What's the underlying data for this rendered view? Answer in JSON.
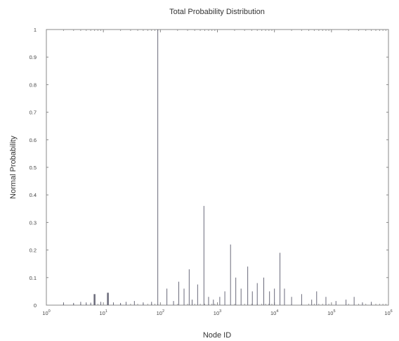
{
  "chart_data": {
    "type": "bar",
    "title": "Total Probability Distribution",
    "xlabel": "Node ID",
    "ylabel": "Normal Probability",
    "x_scale": "log",
    "xlim": [
      1,
      1000000
    ],
    "ylim": [
      0,
      1
    ],
    "grid": false,
    "x_ticks": [
      {
        "value": 1,
        "base": "10",
        "exp": "0"
      },
      {
        "value": 10,
        "base": "10",
        "exp": "1"
      },
      {
        "value": 100,
        "base": "10",
        "exp": "2"
      },
      {
        "value": 1000,
        "base": "10",
        "exp": "3"
      },
      {
        "value": 10000,
        "base": "10",
        "exp": "4"
      },
      {
        "value": 100000,
        "base": "10",
        "exp": "5"
      },
      {
        "value": 1000000,
        "base": "10",
        "exp": "6"
      }
    ],
    "y_ticks": [
      "0",
      "0.1",
      "0.2",
      "0.3",
      "0.4",
      "0.5",
      "0.6",
      "0.7",
      "0.8",
      "0.9",
      "1"
    ],
    "series": [
      {
        "color": "#6a6a7a",
        "points": [
          {
            "x": 2,
            "y": 0.01
          },
          {
            "x": 3,
            "y": 0.008
          },
          {
            "x": 4,
            "y": 0.012
          },
          {
            "x": 5,
            "y": 0.01
          },
          {
            "x": 6,
            "y": 0.009
          },
          {
            "x": 7,
            "y": 0.04
          },
          {
            "x": 9,
            "y": 0.012
          },
          {
            "x": 12,
            "y": 0.045
          },
          {
            "x": 15,
            "y": 0.01
          },
          {
            "x": 20,
            "y": 0.008
          },
          {
            "x": 25,
            "y": 0.012
          },
          {
            "x": 35,
            "y": 0.015
          },
          {
            "x": 50,
            "y": 0.01
          },
          {
            "x": 70,
            "y": 0.012
          },
          {
            "x": 90,
            "y": 1.0
          },
          {
            "x": 130,
            "y": 0.06
          },
          {
            "x": 170,
            "y": 0.015
          },
          {
            "x": 210,
            "y": 0.085
          },
          {
            "x": 260,
            "y": 0.06
          },
          {
            "x": 320,
            "y": 0.13
          },
          {
            "x": 360,
            "y": 0.02
          },
          {
            "x": 450,
            "y": 0.075
          },
          {
            "x": 580,
            "y": 0.36
          },
          {
            "x": 700,
            "y": 0.03
          },
          {
            "x": 850,
            "y": 0.02
          },
          {
            "x": 1100,
            "y": 0.03
          },
          {
            "x": 1350,
            "y": 0.05
          },
          {
            "x": 1700,
            "y": 0.22
          },
          {
            "x": 2100,
            "y": 0.1
          },
          {
            "x": 2600,
            "y": 0.06
          },
          {
            "x": 3400,
            "y": 0.14
          },
          {
            "x": 4100,
            "y": 0.05
          },
          {
            "x": 5000,
            "y": 0.08
          },
          {
            "x": 6500,
            "y": 0.1
          },
          {
            "x": 8200,
            "y": 0.05
          },
          {
            "x": 10000,
            "y": 0.06
          },
          {
            "x": 12500,
            "y": 0.19
          },
          {
            "x": 15000,
            "y": 0.06
          },
          {
            "x": 20000,
            "y": 0.03
          },
          {
            "x": 30000,
            "y": 0.04
          },
          {
            "x": 45000,
            "y": 0.02
          },
          {
            "x": 55000,
            "y": 0.05
          },
          {
            "x": 80000,
            "y": 0.03
          },
          {
            "x": 120000,
            "y": 0.015
          },
          {
            "x": 180000,
            "y": 0.02
          },
          {
            "x": 250000,
            "y": 0.03
          },
          {
            "x": 350000,
            "y": 0.01
          },
          {
            "x": 500000,
            "y": 0.012
          }
        ]
      }
    ]
  }
}
